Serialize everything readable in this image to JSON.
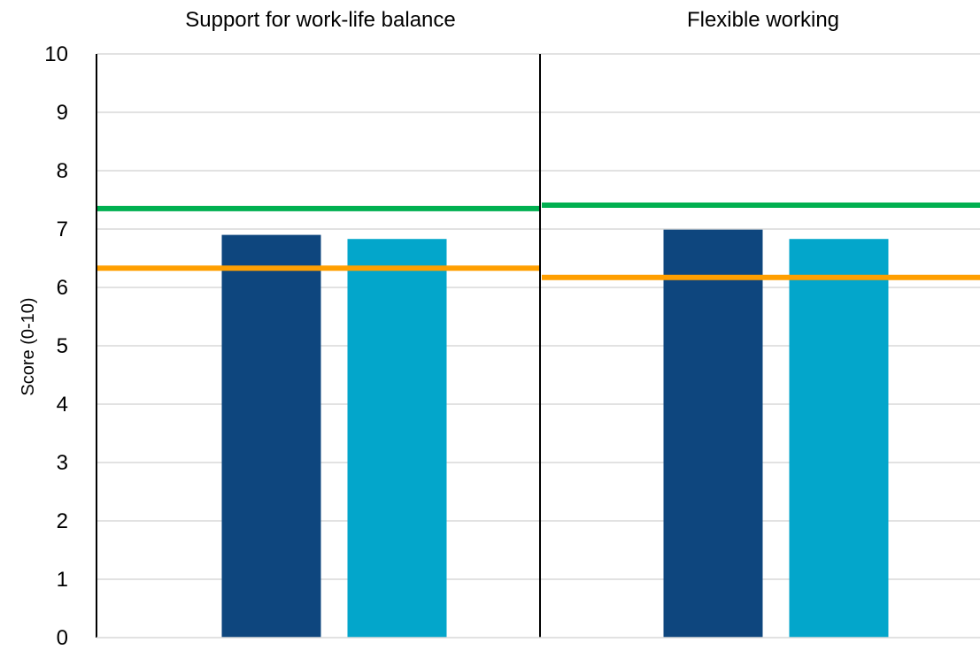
{
  "chart_data": {
    "type": "bar",
    "ylabel": "Score (0-10)",
    "ylim": [
      0,
      10
    ],
    "yticks": [
      "0",
      "1",
      "2",
      "3",
      "4",
      "5",
      "6",
      "7",
      "8",
      "9",
      "10"
    ],
    "grid": true,
    "legend": "none",
    "panels": [
      {
        "title": "Support for work-life balance",
        "bars": [
          6.9,
          6.83
        ],
        "reference_lines": [
          7.35,
          6.33
        ]
      },
      {
        "title": "Flexible working",
        "bars": [
          6.99,
          6.83
        ],
        "reference_lines": [
          7.41,
          6.17
        ]
      }
    ],
    "colors": {
      "bar_1": "#0e467e",
      "bar_2": "#03a6cb",
      "line_green": "#00b050",
      "line_orange": "#ff9f00",
      "grid": "#d9d9d9",
      "axis": "#000000"
    }
  }
}
